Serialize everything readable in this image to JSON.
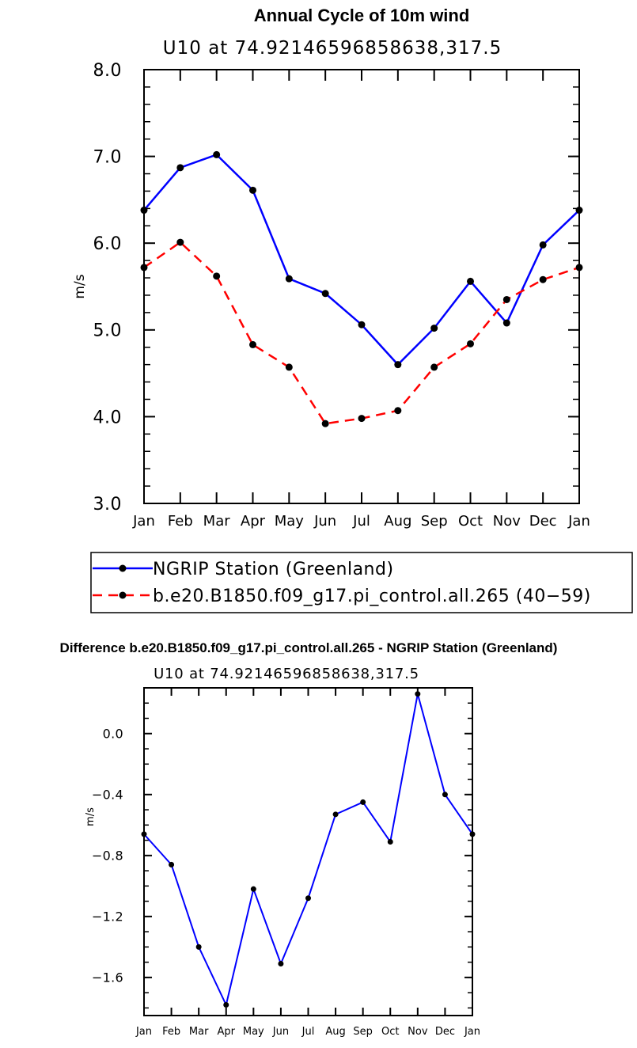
{
  "chart_data": [
    {
      "type": "line",
      "title": "Annual Cycle of 10m wind",
      "subtitle": "U10 at 74.92146596858638,317.5",
      "xlabel": "",
      "ylabel": "m/s",
      "categories": [
        "Jan",
        "Feb",
        "Mar",
        "Apr",
        "May",
        "Jun",
        "Jul",
        "Aug",
        "Sep",
        "Oct",
        "Nov",
        "Dec",
        "Jan"
      ],
      "ylim": [
        3.0,
        8.0
      ],
      "yticks": [
        "3.0",
        "4.0",
        "5.0",
        "6.0",
        "7.0",
        "8.0"
      ],
      "legend_position": "bottom",
      "series": [
        {
          "name": "NGRIP Station (Greenland)",
          "color": "#0000ff",
          "style": "solid",
          "values": [
            6.38,
            6.87,
            7.02,
            6.61,
            5.59,
            5.42,
            5.06,
            4.6,
            5.02,
            5.56,
            5.08,
            5.98,
            6.38
          ]
        },
        {
          "name": "b.e20.B1850.f09_g17.pi_control.all.265 (40−59)",
          "color": "#ff0000",
          "style": "dashed",
          "values": [
            5.72,
            6.01,
            5.62,
            4.83,
            4.57,
            3.92,
            3.98,
            4.07,
            4.57,
            4.84,
            5.35,
            5.58,
            5.72
          ]
        }
      ]
    },
    {
      "type": "line",
      "title": "Difference b.e20.B1850.f09_g17.pi_control.all.265 - NGRIP Station (Greenland)",
      "subtitle": "U10 at 74.92146596858638,317.5",
      "xlabel": "",
      "ylabel": "m/s",
      "categories": [
        "Jan",
        "Feb",
        "Mar",
        "Apr",
        "May",
        "Jun",
        "Jul",
        "Aug",
        "Sep",
        "Oct",
        "Nov",
        "Dec",
        "Jan"
      ],
      "ylim": [
        -1.85,
        0.3
      ],
      "yticks": [
        "-1.6",
        "-1.2",
        "-0.8",
        "-0.4",
        "0.0"
      ],
      "series": [
        {
          "name": "difference",
          "color": "#0000ff",
          "style": "solid",
          "values": [
            -0.66,
            -0.86,
            -1.4,
            -1.78,
            -1.02,
            -1.51,
            -1.08,
            -0.53,
            -0.45,
            -0.71,
            0.26,
            -0.4,
            -0.66
          ]
        }
      ]
    }
  ]
}
